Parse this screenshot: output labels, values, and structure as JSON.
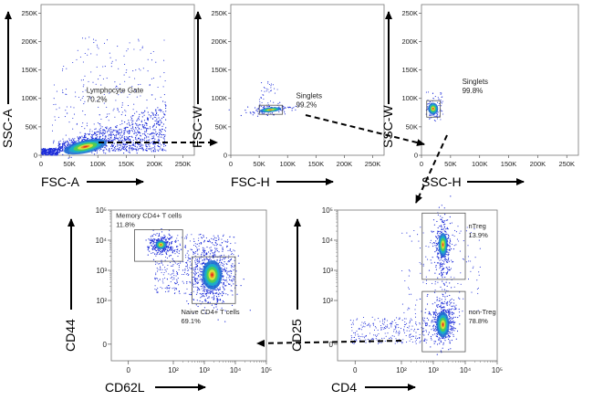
{
  "chart_data": [
    {
      "type": "scatter",
      "id": "p1",
      "xlabel": "FSC-A",
      "ylabel": "SSC-A",
      "xlim": [
        0,
        270000
      ],
      "ylim": [
        0,
        265000
      ],
      "x_ticks": [
        0,
        50000,
        100000,
        150000,
        200000,
        250000
      ],
      "x_tick_labels": [
        "0",
        "50K",
        "100K",
        "150K",
        "200K",
        "250K"
      ],
      "y_ticks": [
        0,
        50000,
        100000,
        150000,
        200000,
        250000
      ],
      "y_tick_labels": [
        "0",
        "50K",
        "100K",
        "150K",
        "200K",
        "250K"
      ],
      "gate": {
        "name": "Lymphocyte Gate",
        "percent": "70.2%"
      }
    },
    {
      "type": "scatter",
      "id": "p2",
      "xlabel": "FSC-H",
      "ylabel": "FSC-W",
      "xlim": [
        0,
        270000
      ],
      "ylim": [
        0,
        265000
      ],
      "x_ticks": [
        0,
        50000,
        100000,
        150000,
        200000,
        250000
      ],
      "x_tick_labels": [
        "0",
        "50K",
        "100K",
        "150K",
        "200K",
        "250K"
      ],
      "y_ticks": [
        0,
        50000,
        100000,
        150000,
        200000,
        250000
      ],
      "y_tick_labels": [
        "0",
        "50K",
        "100K",
        "150K",
        "200K",
        "250K"
      ],
      "gate": {
        "name": "Singlets",
        "percent": "99.2%"
      }
    },
    {
      "type": "scatter",
      "id": "p3",
      "xlabel": "SSC-H",
      "ylabel": "SSC-W",
      "xlim": [
        0,
        270000
      ],
      "ylim": [
        0,
        265000
      ],
      "x_ticks": [
        0,
        50000,
        100000,
        150000,
        200000,
        250000
      ],
      "x_tick_labels": [
        "0",
        "50K",
        "100K",
        "150K",
        "200K",
        "250K"
      ],
      "y_ticks": [
        0,
        50000,
        100000,
        150000,
        200000,
        250000
      ],
      "y_tick_labels": [
        "0",
        "50K",
        "100K",
        "150K",
        "200K",
        "250K"
      ],
      "gate": {
        "name": "Singlets",
        "percent": "99.8%"
      }
    },
    {
      "type": "scatter",
      "id": "p4",
      "scale": "log",
      "xlabel": "CD62L",
      "ylabel": "CD44",
      "decades": [
        0,
        5
      ],
      "tick_labels": [
        "0",
        "10²",
        "10³",
        "10⁴",
        "10⁵"
      ],
      "gates": [
        {
          "name": "Memory CD4+ T cells",
          "percent": "11.8%"
        },
        {
          "name": "Naive CD4+ T cells",
          "percent": "69.1%"
        }
      ]
    },
    {
      "type": "scatter",
      "id": "p5",
      "scale": "log",
      "xlabel": "CD4",
      "ylabel": "CD25",
      "decades": [
        0,
        5
      ],
      "tick_labels": [
        "0",
        "10²",
        "10³",
        "10⁴",
        "10⁵"
      ],
      "gates": [
        {
          "name": "nTreg",
          "percent": "13.9%"
        },
        {
          "name": "non-Treg",
          "percent": "78.8%"
        }
      ]
    }
  ]
}
